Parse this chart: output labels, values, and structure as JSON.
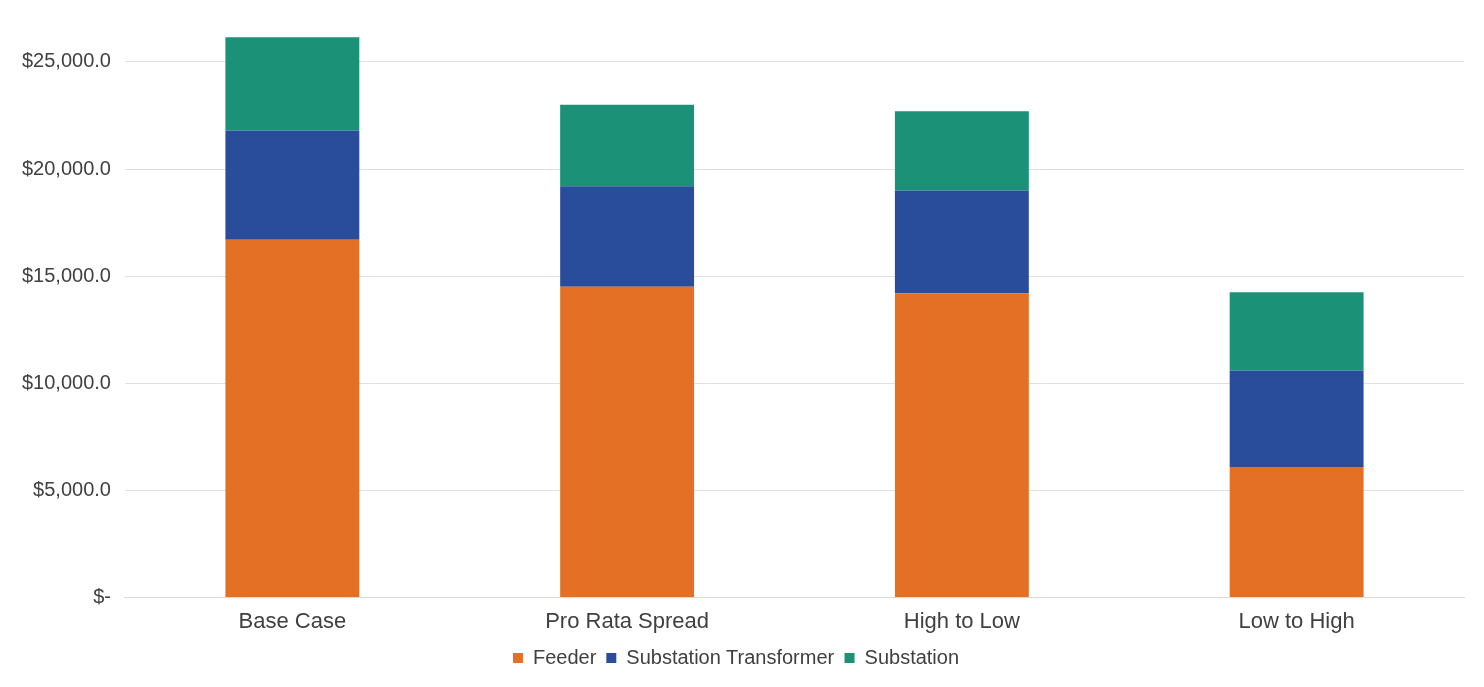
{
  "chart_data": {
    "type": "bar",
    "stacked": true,
    "categories": [
      "Base Case",
      "Pro Rata Spread",
      "High to Low",
      "Low to High"
    ],
    "series": [
      {
        "name": "Feeder",
        "color": "#e37025",
        "values": [
          16700,
          14500,
          14200,
          6100
        ]
      },
      {
        "name": "Substation Transformer",
        "color": "#2a4d9b",
        "values": [
          5100,
          4700,
          4800,
          4500
        ]
      },
      {
        "name": "Substation",
        "color": "#1b9278",
        "values": [
          4350,
          3800,
          3700,
          3650
        ]
      }
    ],
    "ylim": [
      0,
      26300
    ],
    "yticks": [
      {
        "value": 0,
        "label": "$-"
      },
      {
        "value": 5000,
        "label": "$5,000.0"
      },
      {
        "value": 10000,
        "label": "$10,000.0"
      },
      {
        "value": 15000,
        "label": "$15,000.0"
      },
      {
        "value": 20000,
        "label": "$20,000.0"
      },
      {
        "value": 25000,
        "label": "$25,000.0"
      }
    ],
    "grid": "y",
    "legend": "bottom"
  }
}
